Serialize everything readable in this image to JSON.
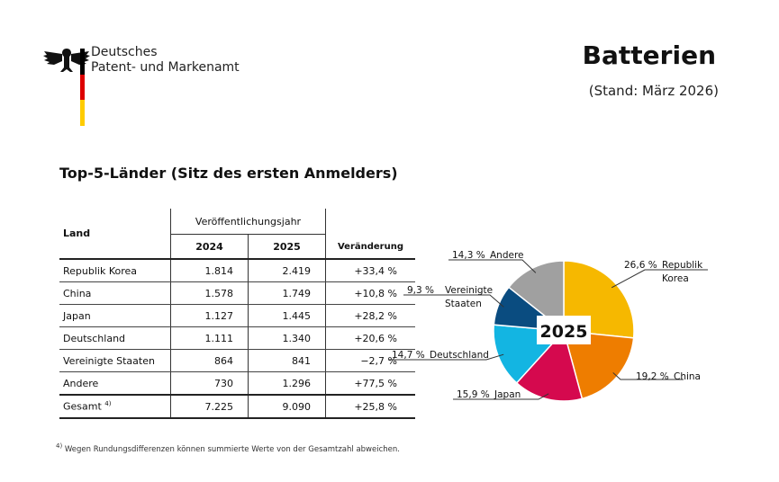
{
  "header": {
    "org_line1": "Deutsches",
    "org_line2": "Patent- und Markenamt",
    "title": "Batterien",
    "subtitle": "(Stand: März 2026)",
    "flag_colors": [
      "#000000",
      "#dd0000",
      "#ffcc00"
    ]
  },
  "section_title": "Top-5-Länder (Sitz des ersten Anmelders)",
  "table": {
    "col_land": "Land",
    "col_pub_year": "Veröffentlichungsjahr",
    "col_2024": "2024",
    "col_2025": "2025",
    "col_change": "Veränderung",
    "rows": [
      {
        "land": "Republik Korea",
        "v2024": "1.814",
        "v2025": "2.419",
        "change": "+33,4 %"
      },
      {
        "land": "China",
        "v2024": "1.578",
        "v2025": "1.749",
        "change": "+10,8 %"
      },
      {
        "land": "Japan",
        "v2024": "1.127",
        "v2025": "1.445",
        "change": "+28,2 %"
      },
      {
        "land": "Deutschland",
        "v2024": "1.111",
        "v2025": "1.340",
        "change": "+20,6 %"
      },
      {
        "land": "Vereinigte Staaten",
        "v2024": "864",
        "v2025": "841",
        "change": "−2,7 %"
      },
      {
        "land": "Andere",
        "v2024": "730",
        "v2025": "1.296",
        "change": "+77,5 %"
      }
    ],
    "total": {
      "land": "Gesamt",
      "footnote_mark": "4)",
      "v2024": "7.225",
      "v2025": "9.090",
      "change": "+25,8 %"
    }
  },
  "footnote": {
    "mark": "4)",
    "text": "Wegen Rundungsdifferenzen können summierte Werte von der Gesamtzahl abweichen."
  },
  "chart_data": {
    "type": "pie",
    "center_label": "2025",
    "slices": [
      {
        "label": "Republik Korea",
        "label_lines": [
          "Republik",
          "Korea"
        ],
        "value": 26.6,
        "value_label": "26,6 %",
        "color": "#f6b800"
      },
      {
        "label": "China",
        "label_lines": [
          "China"
        ],
        "value": 19.2,
        "value_label": "19,2 %",
        "color": "#ee7d00"
      },
      {
        "label": "Japan",
        "label_lines": [
          "Japan"
        ],
        "value": 15.9,
        "value_label": "15,9 %",
        "color": "#d5094e"
      },
      {
        "label": "Deutschland",
        "label_lines": [
          "Deutschland"
        ],
        "value": 14.7,
        "value_label": "14,7 %",
        "color": "#13b5e2"
      },
      {
        "label": "Vereinigte Staaten",
        "label_lines": [
          "Vereinigte",
          "Staaten"
        ],
        "value": 9.3,
        "value_label": "9,3 %",
        "color": "#0a4c80"
      },
      {
        "label": "Andere",
        "label_lines": [
          "Andere"
        ],
        "value": 14.3,
        "value_label": "14,3 %",
        "color": "#a0a0a0"
      }
    ]
  }
}
